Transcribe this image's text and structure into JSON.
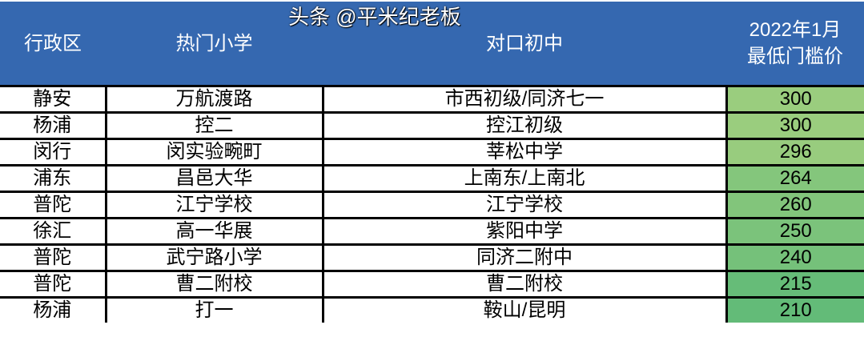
{
  "headers": [
    "行政区",
    "热门小学",
    "对口初中",
    "2022年1月",
    "最低门槛价"
  ],
  "colors": {
    "header_bg": "#3568b0",
    "value_high": "#9acd7e",
    "value_low": "#63bb78"
  },
  "rows": [
    {
      "district": "静安",
      "primary": "万航渡路",
      "middle": "市西初级/同济七一",
      "price": "300"
    },
    {
      "district": "杨浦",
      "primary": "控二",
      "middle": "控江初级",
      "price": "300"
    },
    {
      "district": "闵行",
      "primary": "闵实验畹町",
      "middle": "莘松中学",
      "price": "296"
    },
    {
      "district": "浦东",
      "primary": "昌邑大华",
      "middle": "上南东/上南北",
      "price": "264"
    },
    {
      "district": "普陀",
      "primary": "江宁学校",
      "middle": "江宁学校",
      "price": "260"
    },
    {
      "district": "徐汇",
      "primary": "高一华展",
      "middle": "紫阳中学",
      "price": "250"
    },
    {
      "district": "普陀",
      "primary": "武宁路小学",
      "middle": "同济二附中",
      "price": "240"
    },
    {
      "district": "普陀",
      "primary": "曹二附校",
      "middle": "曹二附校",
      "price": "215"
    },
    {
      "district": "杨浦",
      "primary": "打一",
      "middle": "鞍山/昆明",
      "price": "210"
    }
  ],
  "watermark": "头条 @平米纪老板"
}
